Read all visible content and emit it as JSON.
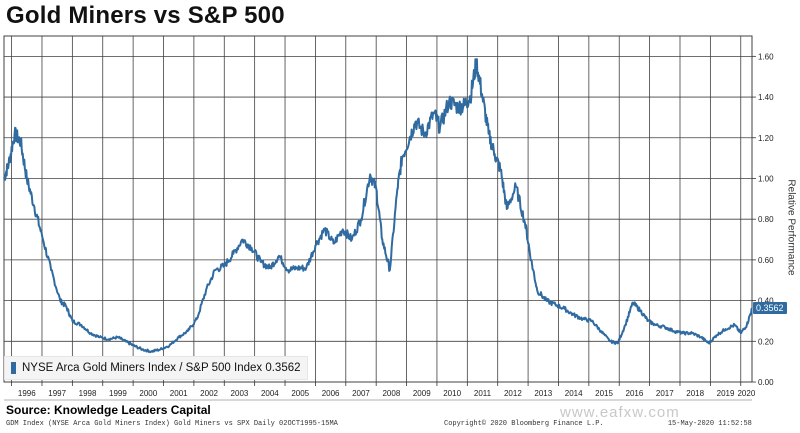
{
  "title": "Gold Miners vs S&P 500",
  "source_label": "Source: Knowledge Leaders Capital",
  "footer_left": "GDM Index (NYSE Arca Gold Miners Index) Gold Miners vs SPX  Daily 02OCT1995-15MA",
  "footer_right": "Copyright© 2020 Bloomberg Finance L.P.",
  "footer_date": "15-May-2020 11:52:58",
  "watermark": "www.eafxw.com",
  "colors": {
    "line": "#2f6aa0",
    "grid": "#404040",
    "bg": "#ffffff"
  },
  "legend": {
    "label": "NYSE Arca Gold Miners Index / S&P 500 Index 0.3562"
  },
  "last_value_badge": "0.3562",
  "chart_data": {
    "type": "line",
    "title": "Gold Miners vs S&P 500",
    "xlabel": "",
    "ylabel": "Relative Performance",
    "xlim": [
      1995.75,
      2020.37
    ],
    "ylim": [
      0.0,
      1.7
    ],
    "yticks": [
      "0.00",
      "0.20",
      "0.40",
      "0.60",
      "0.80",
      "1.00",
      "1.20",
      "1.40",
      "1.60"
    ],
    "xticks": [
      "1996",
      "1997",
      "1998",
      "1999",
      "2000",
      "2001",
      "2002",
      "2003",
      "2004",
      "2005",
      "2006",
      "2007",
      "2008",
      "2009",
      "2010",
      "2011",
      "2012",
      "2013",
      "2014",
      "2015",
      "2016",
      "2017",
      "2018",
      "2019",
      "2020"
    ],
    "grid": true,
    "legend_position": "bottom-left",
    "series": [
      {
        "name": "NYSE Arca Gold Miners Index / S&P 500 Index",
        "last_value": 0.3562,
        "x": [
          1995.75,
          1995.9,
          1996.1,
          1996.3,
          1996.5,
          1996.75,
          1997.0,
          1997.3,
          1997.6,
          1997.8,
          1998.0,
          1998.3,
          1998.6,
          1998.9,
          1999.2,
          1999.5,
          1999.75,
          2000.0,
          2000.3,
          2000.6,
          2000.9,
          2001.2,
          2001.5,
          2001.8,
          2002.1,
          2002.4,
          2002.7,
          2003.0,
          2003.3,
          2003.6,
          2003.9,
          2004.2,
          2004.5,
          2004.8,
          2005.1,
          2005.4,
          2005.7,
          2006.0,
          2006.3,
          2006.6,
          2006.9,
          2007.2,
          2007.5,
          2007.8,
          2008.0,
          2008.2,
          2008.45,
          2008.7,
          2008.85,
          2009.1,
          2009.3,
          2009.6,
          2009.9,
          2010.1,
          2010.4,
          2010.7,
          2010.9,
          2011.1,
          2011.3,
          2011.5,
          2011.7,
          2011.9,
          2012.1,
          2012.3,
          2012.6,
          2012.9,
          2013.1,
          2013.3,
          2013.6,
          2013.9,
          2014.2,
          2014.5,
          2014.8,
          2015.1,
          2015.4,
          2015.7,
          2015.95,
          2016.2,
          2016.45,
          2016.7,
          2016.95,
          2017.2,
          2017.5,
          2017.8,
          2018.1,
          2018.4,
          2018.7,
          2018.95,
          2019.2,
          2019.5,
          2019.8,
          2020.0,
          2020.2,
          2020.37
        ],
        "y": [
          1.0,
          1.07,
          1.22,
          1.18,
          1.0,
          0.86,
          0.72,
          0.55,
          0.4,
          0.37,
          0.3,
          0.28,
          0.24,
          0.22,
          0.21,
          0.22,
          0.2,
          0.18,
          0.16,
          0.15,
          0.16,
          0.18,
          0.22,
          0.25,
          0.31,
          0.45,
          0.55,
          0.57,
          0.63,
          0.7,
          0.66,
          0.59,
          0.56,
          0.62,
          0.55,
          0.56,
          0.56,
          0.67,
          0.75,
          0.68,
          0.75,
          0.7,
          0.8,
          1.02,
          0.95,
          0.7,
          0.55,
          0.95,
          1.1,
          1.2,
          1.28,
          1.22,
          1.32,
          1.25,
          1.38,
          1.35,
          1.36,
          1.4,
          1.57,
          1.4,
          1.22,
          1.12,
          1.04,
          0.85,
          0.96,
          0.78,
          0.6,
          0.45,
          0.4,
          0.38,
          0.36,
          0.33,
          0.31,
          0.3,
          0.25,
          0.2,
          0.19,
          0.28,
          0.39,
          0.35,
          0.3,
          0.28,
          0.27,
          0.25,
          0.24,
          0.24,
          0.22,
          0.19,
          0.23,
          0.26,
          0.28,
          0.24,
          0.28,
          0.36
        ]
      }
    ]
  }
}
